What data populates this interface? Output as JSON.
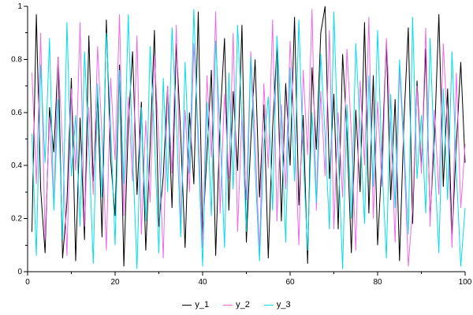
{
  "chart_data": {
    "type": "line",
    "title": "",
    "xlabel": "",
    "ylabel": "",
    "xlim": [
      0,
      100
    ],
    "ylim": [
      0,
      1
    ],
    "x_tick_labels": [
      "0",
      "20",
      "40",
      "60",
      "80",
      "100"
    ],
    "x_ticks": [
      0,
      20,
      40,
      60,
      80,
      100
    ],
    "x_minor_ticks": [
      10,
      30,
      50,
      70,
      90
    ],
    "y_tick_labels": [
      "0",
      "0.2",
      "0.4",
      "0.6",
      "0.8",
      "1"
    ],
    "y_ticks": [
      0,
      0.2,
      0.4,
      0.6,
      0.8,
      1
    ],
    "y_minor_ticks": [
      0.1,
      0.3,
      0.5,
      0.7,
      0.9
    ],
    "grid": false,
    "legend_position": "bottom-center",
    "x_start": 1,
    "x_step": 1,
    "series": [
      {
        "name": "y_1",
        "color": "#000000",
        "values": [
          0.15,
          0.97,
          0.31,
          0.07,
          0.62,
          0.45,
          0.81,
          0.05,
          0.26,
          0.73,
          0.04,
          0.58,
          0.12,
          0.89,
          0.34,
          0.66,
          0.13,
          0.95,
          0.42,
          0.21,
          0.78,
          0.02,
          0.55,
          0.83,
          0.29,
          0.64,
          0.08,
          0.47,
          0.91,
          0.17,
          0.36,
          0.7,
          0.24,
          0.86,
          0.51,
          0.09,
          0.6,
          0.33,
          0.98,
          0.14,
          0.44,
          0.76,
          0.06,
          0.57,
          0.88,
          0.23,
          0.68,
          0.38,
          0.93,
          0.11,
          0.49,
          0.8,
          0.28,
          0.63,
          0.05,
          0.54,
          0.85,
          0.19,
          0.71,
          0.4,
          0.96,
          0.25,
          0.59,
          0.03,
          0.77,
          0.46,
          0.9,
          1.0,
          0.35,
          0.67,
          0.16,
          0.82,
          0.52,
          0.07,
          0.61,
          0.3,
          0.94,
          0.22,
          0.74,
          0.1,
          0.43,
          0.87,
          0.27,
          0.65,
          0.04,
          0.56,
          0.92,
          0.18,
          0.72,
          0.39,
          0.84,
          0.2,
          0.5,
          0.97,
          0.32,
          0.69,
          0.13,
          0.48,
          0.79,
          0.41
        ]
      },
      {
        "name": "y_2",
        "color": "#f06ae8",
        "values": [
          0.75,
          0.33,
          0.9,
          0.12,
          0.58,
          0.25,
          0.81,
          0.47,
          0.06,
          0.69,
          0.38,
          0.94,
          0.17,
          0.62,
          0.29,
          0.85,
          0.51,
          0.08,
          0.73,
          0.42,
          0.97,
          0.21,
          0.66,
          0.34,
          0.89,
          0.14,
          0.57,
          0.26,
          0.82,
          0.49,
          0.05,
          0.7,
          0.37,
          0.93,
          0.18,
          0.61,
          0.3,
          0.86,
          0.53,
          0.09,
          0.74,
          0.43,
          0.98,
          0.22,
          0.67,
          0.35,
          0.9,
          0.15,
          0.59,
          0.27,
          0.83,
          0.5,
          0.07,
          0.71,
          0.39,
          0.95,
          0.19,
          0.63,
          0.31,
          0.87,
          0.54,
          0.1,
          0.76,
          0.44,
          0.99,
          0.23,
          0.68,
          0.36,
          0.91,
          0.16,
          0.6,
          0.28,
          0.84,
          0.52,
          0.08,
          0.72,
          0.4,
          0.96,
          0.2,
          0.64,
          0.32,
          0.88,
          0.55,
          0.11,
          0.77,
          0.45,
          0.02,
          0.24,
          0.7,
          0.37,
          0.92,
          0.17,
          0.61,
          0.29,
          0.86,
          0.53,
          0.09,
          0.75,
          0.24,
          0.48
        ]
      },
      {
        "name": "y_3",
        "color": "#00e0e8",
        "values": [
          0.52,
          0.06,
          0.78,
          0.41,
          0.88,
          0.23,
          0.65,
          0.12,
          0.94,
          0.36,
          0.59,
          0.17,
          0.83,
          0.47,
          0.03,
          0.71,
          0.28,
          0.9,
          0.55,
          0.1,
          0.76,
          0.33,
          0.97,
          0.44,
          0.01,
          0.62,
          0.19,
          0.85,
          0.5,
          0.07,
          0.73,
          0.3,
          0.92,
          0.57,
          0.13,
          0.79,
          0.37,
          0.99,
          0.46,
          0.02,
          0.64,
          0.21,
          0.87,
          0.53,
          0.09,
          0.75,
          0.31,
          0.93,
          0.58,
          0.15,
          0.81,
          0.39,
          0.04,
          0.48,
          0.66,
          0.23,
          0.89,
          0.56,
          0.11,
          0.77,
          0.34,
          0.95,
          0.43,
          0.08,
          0.6,
          0.26,
          0.82,
          0.51,
          0.16,
          0.98,
          0.45,
          0.01,
          0.63,
          0.2,
          0.86,
          0.54,
          0.18,
          0.74,
          0.32,
          0.91,
          0.4,
          0.05,
          0.67,
          0.24,
          0.8,
          0.49,
          0.14,
          0.96,
          0.35,
          0.59,
          0.22,
          0.88,
          0.42,
          0.07,
          0.69,
          0.27,
          0.83,
          0.38,
          0.02,
          0.24
        ]
      }
    ]
  }
}
